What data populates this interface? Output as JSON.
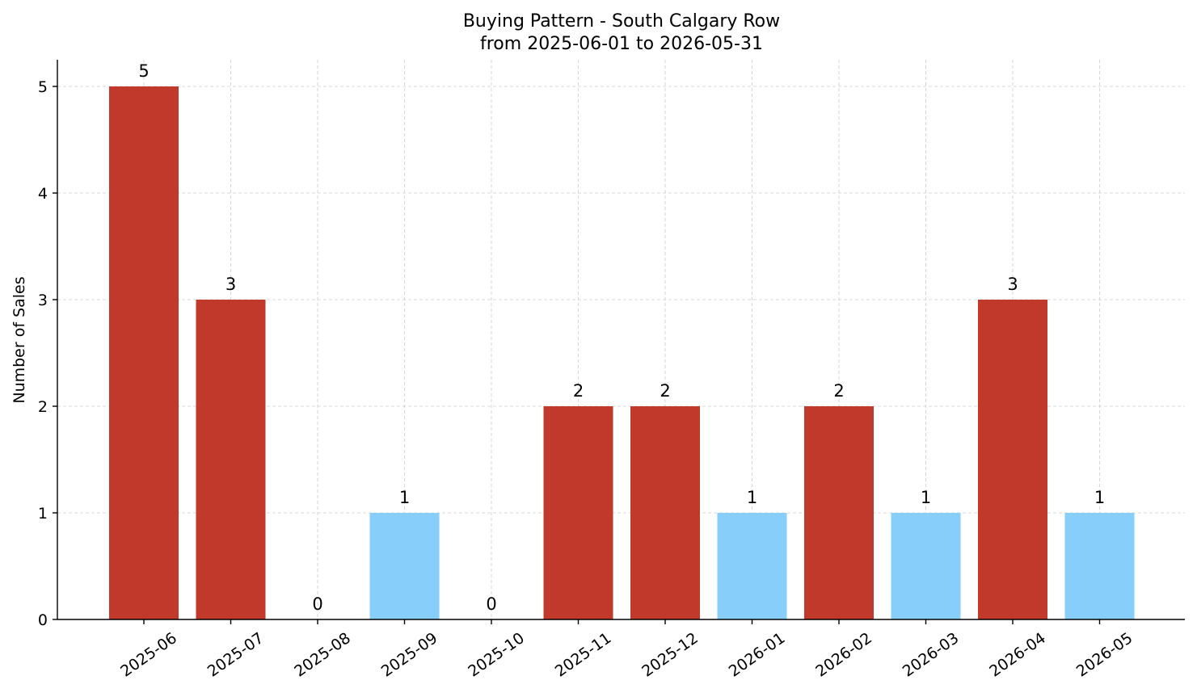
{
  "chart_data": {
    "type": "bar",
    "title": "Buying Pattern - South Calgary Row",
    "subtitle": "from 2025-06-01 to 2026-05-31",
    "xlabel": "",
    "ylabel": "Number of Sales",
    "categories": [
      "2025-06",
      "2025-07",
      "2025-08",
      "2025-09",
      "2025-10",
      "2025-11",
      "2025-12",
      "2026-01",
      "2026-02",
      "2026-03",
      "2026-04",
      "2026-05"
    ],
    "values": [
      5,
      3,
      0,
      1,
      0,
      2,
      2,
      1,
      2,
      1,
      3,
      1
    ],
    "bar_colors": [
      "#c0392b",
      "#c0392b",
      "#c0392b",
      "#87cefa",
      "#c0392b",
      "#c0392b",
      "#c0392b",
      "#87cefa",
      "#c0392b",
      "#87cefa",
      "#c0392b",
      "#87cefa"
    ],
    "y_ticks": [
      0,
      1,
      2,
      3,
      4,
      5
    ],
    "ylim": [
      0,
      5.25
    ],
    "grid": true,
    "data_labels": true
  }
}
